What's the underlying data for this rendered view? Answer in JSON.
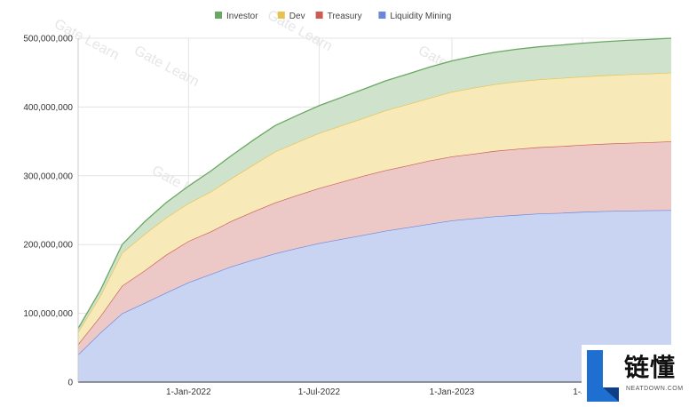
{
  "chart_data": {
    "type": "area",
    "stacked": true,
    "title": "",
    "xlabel": "",
    "ylabel": "",
    "ylim": [
      0,
      500000000
    ],
    "y_ticks": [
      0,
      100000000,
      200000000,
      300000000,
      400000000,
      500000000
    ],
    "y_tick_labels": [
      "0",
      "100,000,000",
      "200,000,000",
      "300,000,000",
      "400,000,000",
      "500,000,000"
    ],
    "x_range": [
      "2021-08-01",
      "2023-11-01"
    ],
    "x_ticks": [
      "2022-01-01",
      "2022-07-01",
      "2023-01-01",
      "2023-07-01"
    ],
    "x_tick_labels": [
      "1-Jan-2022",
      "1-Jul-2022",
      "1-Jan-2023",
      "1-Jul"
    ],
    "grid": true,
    "legend_position": "top",
    "legend": [
      "Investor",
      "Dev",
      "Treasury",
      "Liquidity Mining"
    ],
    "x": [
      "2021-08-01",
      "2021-09-01",
      "2021-10-01",
      "2021-11-01",
      "2021-12-01",
      "2022-01-01",
      "2022-02-01",
      "2022-03-01",
      "2022-04-01",
      "2022-05-01",
      "2022-06-01",
      "2022-07-01",
      "2022-08-01",
      "2022-09-01",
      "2022-10-01",
      "2022-11-01",
      "2022-12-01",
      "2023-01-01",
      "2023-02-01",
      "2023-03-01",
      "2023-04-01",
      "2023-05-01",
      "2023-06-01",
      "2023-07-01",
      "2023-08-01",
      "2023-09-01",
      "2023-10-01",
      "2023-11-01"
    ],
    "series": [
      {
        "name": "Liquidity Mining",
        "color": "#c9d4f3",
        "line_color": "#6a87dc",
        "values": [
          40000000,
          72000000,
          100000000,
          115000000,
          130000000,
          145000000,
          157000000,
          168000000,
          178000000,
          187000000,
          195000000,
          202000000,
          208000000,
          214000000,
          220000000,
          225000000,
          230000000,
          235000000,
          238000000,
          241000000,
          243000000,
          245000000,
          246000000,
          247500000,
          248500000,
          249200000,
          249700000,
          250000000
        ]
      },
      {
        "name": "Treasury",
        "color": "#ecc9c6",
        "line_color": "#cc5b54",
        "values": [
          15000000,
          24000000,
          40000000,
          47000000,
          55000000,
          60000000,
          62000000,
          66000000,
          70000000,
          74000000,
          77000000,
          80000000,
          83000000,
          86000000,
          88000000,
          90000000,
          92000000,
          93000000,
          94000000,
          95000000,
          96000000,
          96500000,
          97000000,
          97500000,
          98000000,
          98500000,
          99000000,
          100000000
        ]
      },
      {
        "name": "Dev",
        "color": "#f7e9b8",
        "line_color": "#e9c14e",
        "values": [
          18000000,
          30000000,
          48000000,
          53000000,
          54000000,
          55000000,
          58000000,
          62000000,
          68000000,
          74000000,
          77000000,
          80000000,
          82000000,
          84000000,
          87000000,
          89000000,
          91000000,
          94000000,
          96000000,
          97000000,
          98000000,
          98500000,
          99000000,
          99200000,
          99500000,
          99700000,
          99800000,
          100000000
        ]
      },
      {
        "name": "Investor",
        "color": "#cfe3cc",
        "line_color": "#6aa762",
        "values": [
          5000000,
          8000000,
          12000000,
          18000000,
          22000000,
          25000000,
          30000000,
          33000000,
          36000000,
          38000000,
          39000000,
          40000000,
          41000000,
          42000000,
          43000000,
          44000000,
          45000000,
          45000000,
          46000000,
          46500000,
          47000000,
          47500000,
          48000000,
          48500000,
          49000000,
          49500000,
          49700000,
          50000000
        ]
      }
    ]
  },
  "watermark": "Gate Learn",
  "logo": {
    "cn": "链懂",
    "en": "NEATDOWN.COM",
    "mark": "L"
  }
}
